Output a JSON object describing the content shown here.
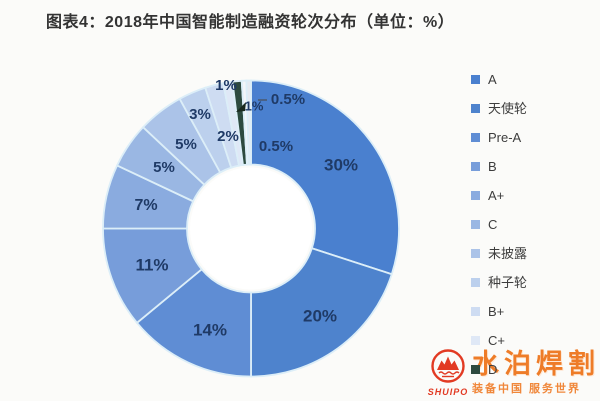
{
  "title": "图表4：2018年中国智能制造融资轮次分布（单位：%）",
  "chart_data": {
    "type": "pie",
    "subtype": "donut",
    "title": "图表4：2018年中国智能制造融资轮次分布（单位：%）",
    "unit": "%",
    "direction": "clockwise",
    "start_angle_deg": 0,
    "legend_position": "right",
    "label_color": "#1f3a66",
    "separator_color": "#dceef8",
    "slices": [
      {
        "label": "A",
        "value": 30,
        "color": "#4a80cf"
      },
      {
        "label": "天使轮",
        "value": 20,
        "color": "#4e83cd"
      },
      {
        "label": "Pre-A",
        "value": 14,
        "color": "#5f8dd4"
      },
      {
        "label": "B",
        "value": 11,
        "color": "#779dda"
      },
      {
        "label": "A+",
        "value": 7,
        "color": "#8aabdf"
      },
      {
        "label": "C",
        "value": 5,
        "color": "#9ab7e3"
      },
      {
        "label": "未披露",
        "value": 5,
        "color": "#abc3e8"
      },
      {
        "label": "种子轮",
        "value": 3,
        "color": "#bcd0ed"
      },
      {
        "label": "B+",
        "value": 2,
        "color": "#cedcf2"
      },
      {
        "label": "C+",
        "value": 1,
        "color": "#dfe8f6"
      },
      {
        "label": "D",
        "value": 1,
        "color": "#2d4a3f"
      },
      {
        "label": "",
        "value": 0.5,
        "color": "#f3f5f9"
      },
      {
        "label": "",
        "value": 0.5,
        "color": "#e5eaf1"
      }
    ]
  },
  "watermark": {
    "latin": "SHUIPO",
    "brand": "水泊焊割",
    "slogan": "装备中国 服务世界",
    "orange": "#ee7c28",
    "red": "#e23a23"
  }
}
